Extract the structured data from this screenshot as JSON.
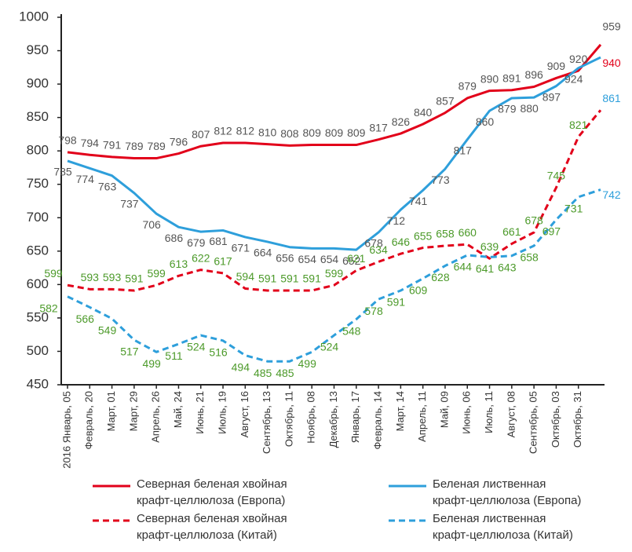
{
  "chart_data": {
    "type": "line",
    "categories": [
      "2016 Январь, 05",
      "Февраль, 20",
      "Март, 01",
      "Март, 29",
      "Апрель, 26",
      "Май, 24",
      "Июнь, 21",
      "Июль, 19",
      "Август, 16",
      "Сентябрь, 13",
      "Октябрь, 11",
      "Ноябрь, 08",
      "Декабрь, 13",
      "Январь, 17",
      "Февраль, 14",
      "Март, 14",
      "Апрель, 11",
      "Май, 09",
      "Июнь, 06",
      "Июль, 11",
      "Август, 08",
      "Сентябрь, 05",
      "Октябрь, 03",
      "Октябрь, 31",
      null
    ],
    "ylim": [
      450,
      1000
    ],
    "yticks": [
      450,
      500,
      550,
      600,
      650,
      700,
      750,
      800,
      850,
      900,
      950,
      1000
    ],
    "grid": false,
    "series": [
      {
        "name": "Северная беленая хвойная\nкрафт-целлюлоза (Европа)",
        "color": "#e2001a",
        "dashed": false,
        "label_color": "#555555",
        "end_label_color": "#555555",
        "values": [
          798,
          794,
          791,
          789,
          789,
          796,
          807,
          812,
          812,
          810,
          808,
          809,
          809,
          809,
          817,
          826,
          840,
          857,
          879,
          890,
          891,
          896,
          909,
          920,
          959
        ]
      },
      {
        "name": "Беленая лиственная\nкрафт-целлюлоза (Европа)",
        "color": "#2e9fdb",
        "dashed": false,
        "label_color": "#555555",
        "end_label_color": "#e2001a",
        "values": [
          785,
          774,
          763,
          737,
          706,
          686,
          679,
          681,
          671,
          664,
          656,
          654,
          654,
          652,
          678,
          712,
          741,
          773,
          817,
          860,
          879,
          880,
          897,
          924,
          940
        ]
      },
      {
        "name": "Северная беленая хвойная\nкрафт-целлюлоза (Китай)",
        "color": "#e2001a",
        "dashed": true,
        "label_color": "#4c9a2a",
        "end_label_color": "#2e9fdb",
        "values": [
          599,
          593,
          593,
          591,
          599,
          613,
          622,
          617,
          594,
          591,
          591,
          591,
          599,
          621,
          634,
          646,
          655,
          658,
          660,
          639,
          661,
          678,
          745,
          821,
          861
        ]
      },
      {
        "name": "Беленая лиственная\nкрафт-целлюлоза (Китай)",
        "color": "#2e9fdb",
        "dashed": true,
        "label_color": "#4c9a2a",
        "end_label_color": "#2e9fdb",
        "values": [
          582,
          566,
          549,
          517,
          499,
          511,
          524,
          516,
          494,
          485,
          485,
          499,
          524,
          548,
          578,
          591,
          609,
          628,
          644,
          641,
          643,
          658,
          697,
          731,
          742
        ]
      }
    ]
  }
}
